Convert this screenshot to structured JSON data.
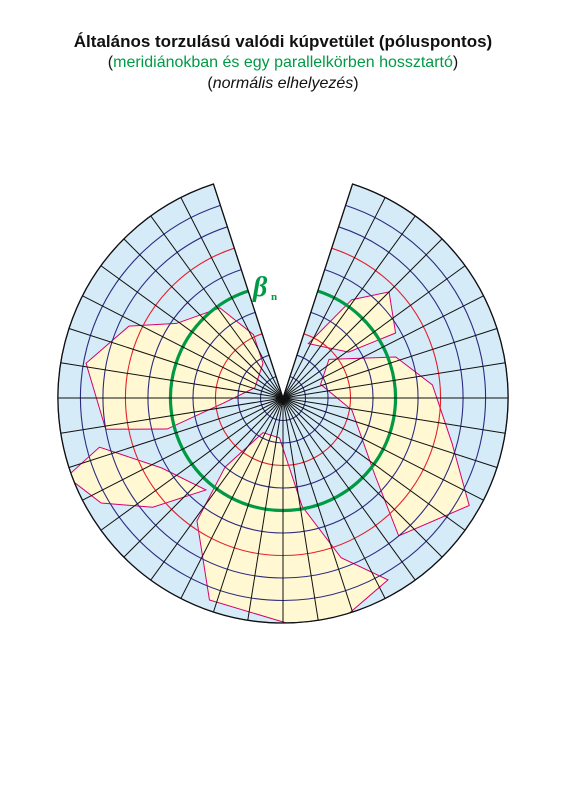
{
  "header": {
    "title": "Általános torzulású valódi kúpvetület (póluspontos)",
    "subtitle": {
      "open": "(",
      "text": "meridiánokban és egy parallelkörben hossztartó",
      "close": ")"
    },
    "note": {
      "open": "(",
      "text": "normális elhelyezés",
      "close": ")"
    }
  },
  "label": {
    "symbol": "β",
    "subscript": "n"
  }
}
